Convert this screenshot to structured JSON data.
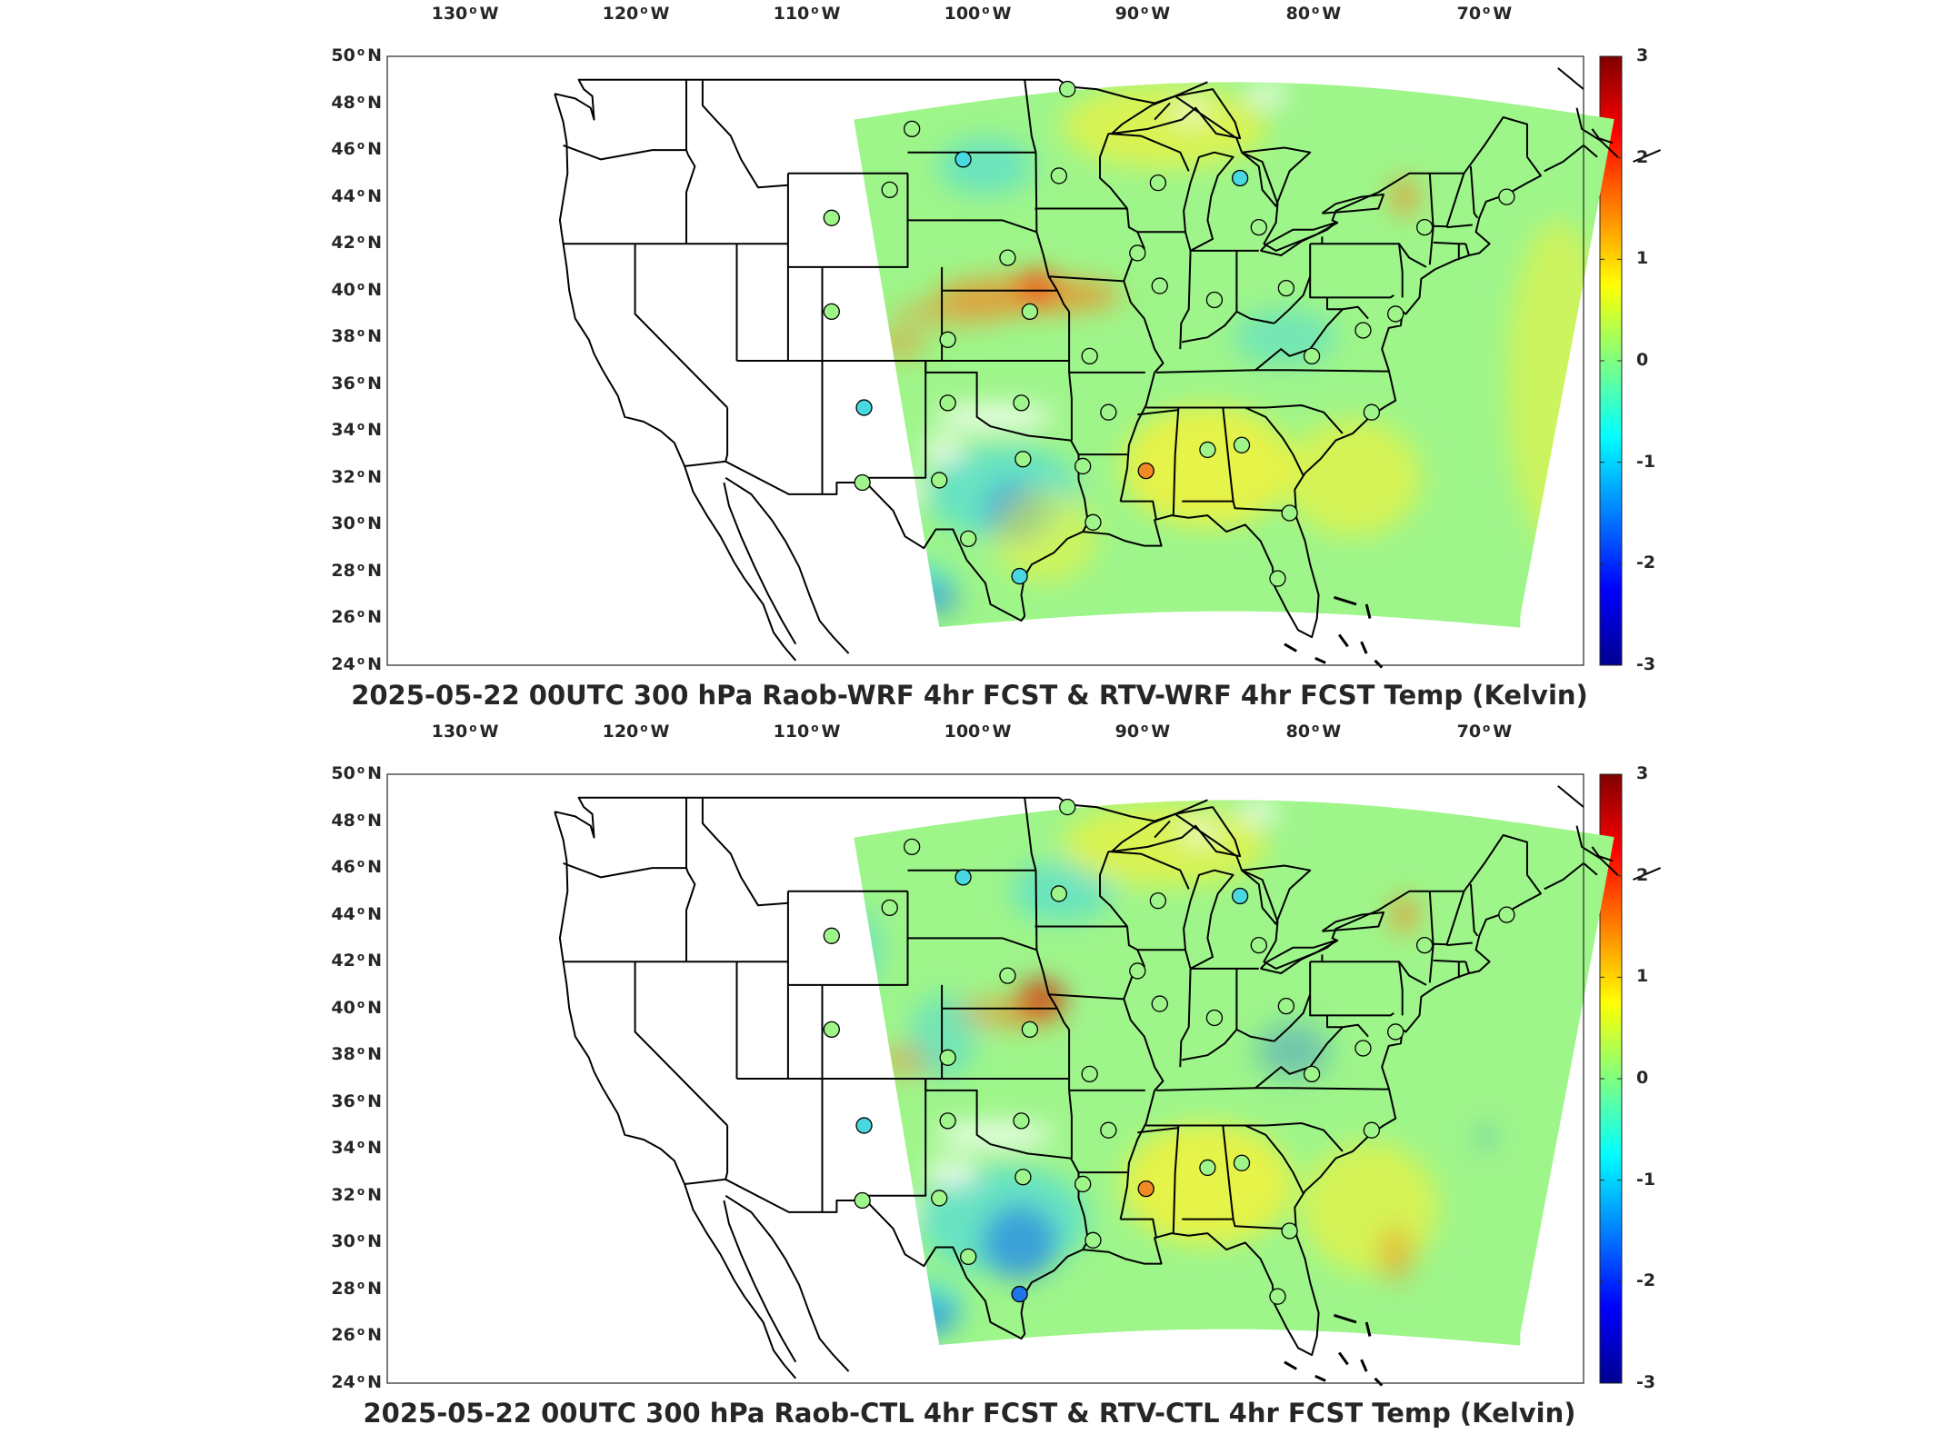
{
  "map_data": {
    "lon_ticks": [
      {
        "deg": "130",
        "hemi": "W"
      },
      {
        "deg": "120",
        "hemi": "W"
      },
      {
        "deg": "110",
        "hemi": "W"
      },
      {
        "deg": "100",
        "hemi": "W"
      },
      {
        "deg": "90",
        "hemi": "W"
      },
      {
        "deg": "80",
        "hemi": "W"
      },
      {
        "deg": "70",
        "hemi": "W"
      }
    ],
    "lat_ticks": [
      {
        "deg": "50",
        "hemi": "N"
      },
      {
        "deg": "48",
        "hemi": "N"
      },
      {
        "deg": "46",
        "hemi": "N"
      },
      {
        "deg": "44",
        "hemi": "N"
      },
      {
        "deg": "42",
        "hemi": "N"
      },
      {
        "deg": "40",
        "hemi": "N"
      },
      {
        "deg": "38",
        "hemi": "N"
      },
      {
        "deg": "36",
        "hemi": "N"
      },
      {
        "deg": "34",
        "hemi": "N"
      },
      {
        "deg": "32",
        "hemi": "N"
      },
      {
        "deg": "30",
        "hemi": "N"
      },
      {
        "deg": "28",
        "hemi": "N"
      },
      {
        "deg": "26",
        "hemi": "N"
      },
      {
        "deg": "24",
        "hemi": "N"
      }
    ],
    "colorbar": {
      "ticks": [
        "3",
        "2",
        "1",
        "0",
        "-1",
        "-2",
        "-3"
      ],
      "min": -3,
      "max": 3,
      "colors": [
        "#00008f",
        "#0000ff",
        "#0080ff",
        "#00ffff",
        "#80ff80",
        "#ffff00",
        "#ff8000",
        "#ff0000",
        "#800000"
      ]
    },
    "field_colors": {
      "base": "#9ef58a",
      "cool": "#48d8e0",
      "cold": "#1e74e8",
      "warm": "#f2f23c",
      "hot": "#f08a24",
      "missing": "#ffffff"
    },
    "panels": [
      {
        "title": "2025-05-22 00UTC 300 hPa Raob-WRF 4hr FCST & RTV-WRF 4hr FCST Temp (Kelvin)",
        "stations": [
          {
            "lon": -94.7,
            "lat": 48.6,
            "c": "#9ef58a"
          },
          {
            "lon": -103.8,
            "lat": 46.9,
            "c": "#9ef58a"
          },
          {
            "lon": -100.8,
            "lat": 45.6,
            "c": "#48d8e0"
          },
          {
            "lon": -95.2,
            "lat": 44.9,
            "c": "#9ef58a"
          },
          {
            "lon": -108.5,
            "lat": 43.1,
            "c": "#9ef58a"
          },
          {
            "lon": -105.1,
            "lat": 44.3,
            "c": "#9ef58a"
          },
          {
            "lon": -89.4,
            "lat": 44.6,
            "c": "#9ef58a"
          },
          {
            "lon": -84.6,
            "lat": 44.8,
            "c": "#48d8e0"
          },
          {
            "lon": -83.5,
            "lat": 42.7,
            "c": "#9ef58a"
          },
          {
            "lon": -73.8,
            "lat": 42.7,
            "c": "#9ef58a"
          },
          {
            "lon": -69.0,
            "lat": 44.0,
            "c": "#9ef58a"
          },
          {
            "lon": -98.2,
            "lat": 41.4,
            "c": "#9ef58a"
          },
          {
            "lon": -90.6,
            "lat": 41.6,
            "c": "#9ef58a"
          },
          {
            "lon": -89.3,
            "lat": 40.2,
            "c": "#9ef58a"
          },
          {
            "lon": -86.1,
            "lat": 39.6,
            "c": "#9ef58a"
          },
          {
            "lon": -81.9,
            "lat": 40.1,
            "c": "#9ef58a"
          },
          {
            "lon": -96.9,
            "lat": 39.1,
            "c": "#9ef58a"
          },
          {
            "lon": -101.7,
            "lat": 37.9,
            "c": "#9ef58a"
          },
          {
            "lon": -108.5,
            "lat": 39.1,
            "c": "#9ef58a"
          },
          {
            "lon": -93.4,
            "lat": 37.2,
            "c": "#9ef58a"
          },
          {
            "lon": -77.4,
            "lat": 38.3,
            "c": "#9ef58a"
          },
          {
            "lon": -80.4,
            "lat": 37.2,
            "c": "#9ef58a"
          },
          {
            "lon": -75.5,
            "lat": 39.0,
            "c": "#9ef58a"
          },
          {
            "lon": -106.6,
            "lat": 35.0,
            "c": "#48d8e0"
          },
          {
            "lon": -101.7,
            "lat": 35.2,
            "c": "#9ef58a"
          },
          {
            "lon": -97.4,
            "lat": 35.2,
            "c": "#9ef58a"
          },
          {
            "lon": -92.3,
            "lat": 34.8,
            "c": "#9ef58a"
          },
          {
            "lon": -86.5,
            "lat": 33.2,
            "c": "#9ef58a"
          },
          {
            "lon": -84.5,
            "lat": 33.4,
            "c": "#9ef58a"
          },
          {
            "lon": -76.9,
            "lat": 34.8,
            "c": "#9ef58a"
          },
          {
            "lon": -90.1,
            "lat": 32.3,
            "c": "#f08a24"
          },
          {
            "lon": -97.3,
            "lat": 32.8,
            "c": "#9ef58a"
          },
          {
            "lon": -93.8,
            "lat": 32.5,
            "c": "#9ef58a"
          },
          {
            "lon": -106.7,
            "lat": 31.8,
            "c": "#9ef58a"
          },
          {
            "lon": -102.2,
            "lat": 31.9,
            "c": "#9ef58a"
          },
          {
            "lon": -100.5,
            "lat": 29.4,
            "c": "#9ef58a"
          },
          {
            "lon": -97.5,
            "lat": 27.8,
            "c": "#48d8e0"
          },
          {
            "lon": -93.2,
            "lat": 30.1,
            "c": "#9ef58a"
          },
          {
            "lon": -81.7,
            "lat": 30.5,
            "c": "#9ef58a"
          },
          {
            "lon": -82.4,
            "lat": 27.7,
            "c": "#9ef58a"
          }
        ],
        "patches": [
          {
            "lon": -97,
            "lat": 39.8,
            "rx": 5.5,
            "ry": 0.8,
            "c": "#f08a24",
            "o": 0.75
          },
          {
            "lon": -101.5,
            "lat": 39.0,
            "rx": 3.5,
            "ry": 0.5,
            "c": "#f08a24",
            "o": 0.55
          },
          {
            "lon": -104.5,
            "lat": 37.7,
            "rx": 1.5,
            "ry": 0.6,
            "c": "#f08a24",
            "o": 0.55
          },
          {
            "lon": -96.5,
            "lat": 40.2,
            "rx": 1.2,
            "ry": 0.7,
            "c": "#ff3000",
            "o": 0.7
          },
          {
            "lon": -98.5,
            "lat": 31.4,
            "rx": 4.5,
            "ry": 2.0,
            "c": "#48d8e0",
            "o": 0.65
          },
          {
            "lon": -97.7,
            "lat": 30.5,
            "rx": 1.8,
            "ry": 1.3,
            "c": "#1e74e8",
            "o": 0.55
          },
          {
            "lon": -103.8,
            "lat": 27.5,
            "rx": 2.5,
            "ry": 1.0,
            "c": "#48d8e0",
            "o": 0.65
          },
          {
            "lon": -102.3,
            "lat": 26.8,
            "rx": 1.2,
            "ry": 0.6,
            "c": "#1e74e8",
            "o": 0.6
          },
          {
            "lon": -99.5,
            "lat": 45.3,
            "rx": 2.8,
            "ry": 1.2,
            "c": "#48d8e0",
            "o": 0.6
          },
          {
            "lon": -86.5,
            "lat": 32.5,
            "rx": 5.0,
            "ry": 2.6,
            "c": "#f2f23c",
            "o": 0.85
          },
          {
            "lon": -78.0,
            "lat": 32.0,
            "rx": 4.0,
            "ry": 2.5,
            "c": "#f2f23c",
            "o": 0.65
          },
          {
            "lon": -89.0,
            "lat": 47.0,
            "rx": 6.0,
            "ry": 1.8,
            "c": "#f2f23c",
            "o": 0.7
          },
          {
            "lon": -75.0,
            "lat": 44.0,
            "rx": 0.7,
            "ry": 0.8,
            "c": "#f08a24",
            "o": 0.85
          },
          {
            "lon": -66.0,
            "lat": 36.0,
            "rx": 3.0,
            "ry": 7.0,
            "c": "#f2f23c",
            "o": 0.55
          },
          {
            "lon": -96.0,
            "lat": 29.5,
            "rx": 3.0,
            "ry": 2.0,
            "c": "#f2f23c",
            "o": 0.55
          },
          {
            "lon": -82.0,
            "lat": 38.0,
            "rx": 3.0,
            "ry": 1.2,
            "c": "#48d8e0",
            "o": 0.5
          },
          {
            "lon": -99.0,
            "lat": 34.6,
            "rx": 3.5,
            "ry": 0.5,
            "c": "#ffffff",
            "o": 0.9
          },
          {
            "lon": -102.0,
            "lat": 33.2,
            "rx": 1.2,
            "ry": 0.5,
            "c": "#ffffff",
            "o": 0.9
          },
          {
            "lon": -104.5,
            "lat": 31.5,
            "rx": 1.5,
            "ry": 0.5,
            "c": "#ffffff",
            "o": 0.9
          },
          {
            "lon": -87.5,
            "lat": 47.6,
            "rx": 0.9,
            "ry": 0.3,
            "c": "#ffffff",
            "o": 0.9
          },
          {
            "lon": -83.0,
            "lat": 48.4,
            "rx": 1.2,
            "ry": 0.4,
            "c": "#ffffff",
            "o": 0.9
          }
        ]
      },
      {
        "title": "2025-05-22 00UTC 300 hPa Raob-CTL 4hr FCST & RTV-CTL 4hr FCST Temp (Kelvin)",
        "stations": [
          {
            "lon": -94.7,
            "lat": 48.6,
            "c": "#9ef58a"
          },
          {
            "lon": -103.8,
            "lat": 46.9,
            "c": "#9ef58a"
          },
          {
            "lon": -100.8,
            "lat": 45.6,
            "c": "#48d8e0"
          },
          {
            "lon": -95.2,
            "lat": 44.9,
            "c": "#9ef58a"
          },
          {
            "lon": -108.5,
            "lat": 43.1,
            "c": "#9ef58a"
          },
          {
            "lon": -105.1,
            "lat": 44.3,
            "c": "#9ef58a"
          },
          {
            "lon": -89.4,
            "lat": 44.6,
            "c": "#9ef58a"
          },
          {
            "lon": -84.6,
            "lat": 44.8,
            "c": "#48d8e0"
          },
          {
            "lon": -83.5,
            "lat": 42.7,
            "c": "#9ef58a"
          },
          {
            "lon": -73.8,
            "lat": 42.7,
            "c": "#9ef58a"
          },
          {
            "lon": -69.0,
            "lat": 44.0,
            "c": "#9ef58a"
          },
          {
            "lon": -98.2,
            "lat": 41.4,
            "c": "#9ef58a"
          },
          {
            "lon": -90.6,
            "lat": 41.6,
            "c": "#9ef58a"
          },
          {
            "lon": -89.3,
            "lat": 40.2,
            "c": "#9ef58a"
          },
          {
            "lon": -86.1,
            "lat": 39.6,
            "c": "#9ef58a"
          },
          {
            "lon": -81.9,
            "lat": 40.1,
            "c": "#9ef58a"
          },
          {
            "lon": -96.9,
            "lat": 39.1,
            "c": "#9ef58a"
          },
          {
            "lon": -101.7,
            "lat": 37.9,
            "c": "#9ef58a"
          },
          {
            "lon": -108.5,
            "lat": 39.1,
            "c": "#9ef58a"
          },
          {
            "lon": -93.4,
            "lat": 37.2,
            "c": "#9ef58a"
          },
          {
            "lon": -77.4,
            "lat": 38.3,
            "c": "#9ef58a"
          },
          {
            "lon": -80.4,
            "lat": 37.2,
            "c": "#9ef58a"
          },
          {
            "lon": -75.5,
            "lat": 39.0,
            "c": "#9ef58a"
          },
          {
            "lon": -106.6,
            "lat": 35.0,
            "c": "#48d8e0"
          },
          {
            "lon": -101.7,
            "lat": 35.2,
            "c": "#9ef58a"
          },
          {
            "lon": -97.4,
            "lat": 35.2,
            "c": "#9ef58a"
          },
          {
            "lon": -92.3,
            "lat": 34.8,
            "c": "#9ef58a"
          },
          {
            "lon": -86.5,
            "lat": 33.2,
            "c": "#9ef58a"
          },
          {
            "lon": -84.5,
            "lat": 33.4,
            "c": "#9ef58a"
          },
          {
            "lon": -76.9,
            "lat": 34.8,
            "c": "#9ef58a"
          },
          {
            "lon": -90.1,
            "lat": 32.3,
            "c": "#f08a24"
          },
          {
            "lon": -97.3,
            "lat": 32.8,
            "c": "#9ef58a"
          },
          {
            "lon": -93.8,
            "lat": 32.5,
            "c": "#9ef58a"
          },
          {
            "lon": -106.7,
            "lat": 31.8,
            "c": "#9ef58a"
          },
          {
            "lon": -102.2,
            "lat": 31.9,
            "c": "#9ef58a"
          },
          {
            "lon": -100.5,
            "lat": 29.4,
            "c": "#9ef58a"
          },
          {
            "lon": -97.5,
            "lat": 27.8,
            "c": "#1e74e8"
          },
          {
            "lon": -93.2,
            "lat": 30.1,
            "c": "#9ef58a"
          },
          {
            "lon": -81.7,
            "lat": 30.5,
            "c": "#9ef58a"
          },
          {
            "lon": -82.4,
            "lat": 27.7,
            "c": "#9ef58a"
          }
        ],
        "patches": [
          {
            "lon": -96.3,
            "lat": 40.3,
            "rx": 1.4,
            "ry": 0.9,
            "c": "#d00000",
            "o": 0.8
          },
          {
            "lon": -98.5,
            "lat": 39.8,
            "rx": 3.0,
            "ry": 0.6,
            "c": "#f08a24",
            "o": 0.6
          },
          {
            "lon": -104.0,
            "lat": 37.8,
            "rx": 1.6,
            "ry": 0.7,
            "c": "#f08a24",
            "o": 0.55
          },
          {
            "lon": -102.0,
            "lat": 38.8,
            "rx": 2.0,
            "ry": 1.8,
            "c": "#48d8e0",
            "o": 0.5
          },
          {
            "lon": -98.5,
            "lat": 31.0,
            "rx": 5.0,
            "ry": 2.3,
            "c": "#48d8e0",
            "o": 0.65
          },
          {
            "lon": -97.5,
            "lat": 30.0,
            "rx": 2.2,
            "ry": 1.6,
            "c": "#1e74e8",
            "o": 0.6
          },
          {
            "lon": -103.5,
            "lat": 27.3,
            "rx": 2.8,
            "ry": 1.2,
            "c": "#48d8e0",
            "o": 0.7
          },
          {
            "lon": -102.5,
            "lat": 26.8,
            "rx": 1.3,
            "ry": 0.7,
            "c": "#1e74e8",
            "o": 0.6
          },
          {
            "lon": -95.0,
            "lat": 45.0,
            "rx": 3.0,
            "ry": 1.3,
            "c": "#48d8e0",
            "o": 0.6
          },
          {
            "lon": -108.0,
            "lat": 42.5,
            "rx": 2.5,
            "ry": 2.0,
            "c": "#48d8e0",
            "o": 0.5
          },
          {
            "lon": -86.5,
            "lat": 32.5,
            "rx": 5.0,
            "ry": 2.6,
            "c": "#f2f23c",
            "o": 0.85
          },
          {
            "lon": -77.0,
            "lat": 31.5,
            "rx": 4.0,
            "ry": 2.8,
            "c": "#f2f23c",
            "o": 0.65
          },
          {
            "lon": -75.5,
            "lat": 29.5,
            "rx": 1.0,
            "ry": 1.2,
            "c": "#f08a24",
            "o": 0.5
          },
          {
            "lon": -89.0,
            "lat": 47.0,
            "rx": 6.0,
            "ry": 1.8,
            "c": "#f2f23c",
            "o": 0.7
          },
          {
            "lon": -75.0,
            "lat": 44.0,
            "rx": 0.7,
            "ry": 0.8,
            "c": "#f08a24",
            "o": 0.85
          },
          {
            "lon": -81.5,
            "lat": 38.2,
            "rx": 2.2,
            "ry": 1.2,
            "c": "#1e74e8",
            "o": 0.35
          },
          {
            "lon": -70.2,
            "lat": 34.5,
            "rx": 0.3,
            "ry": 0.4,
            "c": "#1e74e8",
            "o": 0.7
          },
          {
            "lon": -99.0,
            "lat": 34.6,
            "rx": 3.5,
            "ry": 0.5,
            "c": "#ffffff",
            "o": 0.9
          },
          {
            "lon": -101.5,
            "lat": 33.0,
            "rx": 1.5,
            "ry": 0.5,
            "c": "#ffffff",
            "o": 0.9
          },
          {
            "lon": -105.0,
            "lat": 31.4,
            "rx": 1.6,
            "ry": 0.5,
            "c": "#ffffff",
            "o": 0.9
          },
          {
            "lon": -87.0,
            "lat": 47.5,
            "rx": 1.0,
            "ry": 0.3,
            "c": "#ffffff",
            "o": 0.9
          },
          {
            "lon": -83.5,
            "lat": 48.4,
            "rx": 1.2,
            "ry": 0.4,
            "c": "#ffffff",
            "o": 0.9
          }
        ]
      }
    ]
  }
}
